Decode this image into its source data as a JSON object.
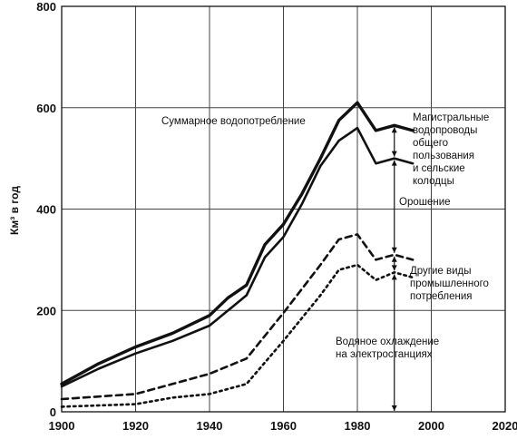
{
  "chart_data": {
    "type": "line",
    "xlabel": "",
    "ylabel": "Км³ в год",
    "xlim": [
      1900,
      2020
    ],
    "ylim": [
      0,
      800
    ],
    "x_ticks": [
      "1900",
      "1920",
      "1940",
      "1960",
      "1980",
      "2000",
      "2020"
    ],
    "y_ticks": [
      "0",
      "200",
      "400",
      "600",
      "800"
    ],
    "grid": true,
    "series": [
      {
        "name": "Суммарное водопотребление",
        "style": "solid-thick",
        "x": [
          1900,
          1910,
          1920,
          1930,
          1940,
          1945,
          1950,
          1955,
          1960,
          1965,
          1970,
          1975,
          1980,
          1985,
          1990,
          1995
        ],
        "values": [
          55,
          95,
          128,
          155,
          190,
          225,
          250,
          330,
          370,
          430,
          500,
          575,
          610,
          555,
          565,
          555
        ]
      },
      {
        "name": "Магистральные водопроводы общего пользования и сельские колодцы",
        "style": "solid-thin",
        "x": [
          1900,
          1910,
          1920,
          1930,
          1940,
          1945,
          1950,
          1955,
          1960,
          1965,
          1970,
          1975,
          1980,
          1985,
          1990,
          1995
        ],
        "values": [
          50,
          85,
          115,
          140,
          170,
          200,
          230,
          305,
          345,
          410,
          485,
          535,
          560,
          490,
          500,
          490
        ]
      },
      {
        "name": "Другие виды промышленного потребления",
        "style": "dashed",
        "x": [
          1900,
          1920,
          1930,
          1940,
          1950,
          1960,
          1970,
          1975,
          1980,
          1985,
          1990,
          1995
        ],
        "values": [
          25,
          35,
          55,
          75,
          105,
          195,
          290,
          340,
          350,
          300,
          310,
          300
        ]
      },
      {
        "name": "Водяное охлаждение на электростанциях",
        "style": "dotted",
        "x": [
          1900,
          1920,
          1930,
          1940,
          1950,
          1960,
          1970,
          1975,
          1980,
          1985,
          1990,
          1995
        ],
        "values": [
          10,
          15,
          28,
          35,
          55,
          140,
          230,
          280,
          290,
          260,
          275,
          265
        ]
      }
    ],
    "annotations": {
      "total": "Суммарное водопотребление",
      "municipal": [
        "Магистральные",
        "водопроводы",
        "общего",
        "пользования",
        "и сельские",
        "колодцы"
      ],
      "irrigation": "Орошение",
      "industrial": [
        "Другие виды",
        "промышленного",
        "потребления"
      ],
      "cooling": [
        "Водяное охлаждение",
        "на электростанциях"
      ]
    }
  }
}
